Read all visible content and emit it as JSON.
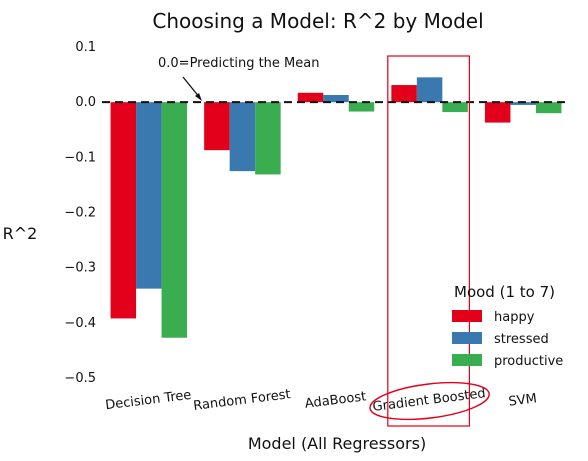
{
  "chart_data": {
    "type": "bar",
    "title": "Choosing a Model: R^2 by Model",
    "xlabel": "Model (All Regressors)",
    "ylabel": "R^2",
    "ylim": [
      -0.5,
      0.1
    ],
    "yticks": [
      "0.1",
      "0.0",
      "−0.1",
      "−0.2",
      "−0.3",
      "−0.4",
      "−0.5"
    ],
    "categories": [
      "Decision Tree",
      "Random Forest",
      "AdaBoost",
      "Gradient Boosted",
      "SVM"
    ],
    "series": [
      {
        "name": "happy",
        "color": "#e3001b",
        "values": [
          -0.392,
          -0.087,
          0.017,
          0.031,
          -0.037
        ]
      },
      {
        "name": "stressed",
        "color": "#3a78b0",
        "values": [
          -0.338,
          -0.125,
          0.013,
          0.045,
          -0.005
        ]
      },
      {
        "name": "productive",
        "color": "#3aad50",
        "values": [
          -0.427,
          -0.131,
          -0.017,
          -0.018,
          -0.02
        ]
      }
    ],
    "legend_title": "Mood (1 to 7)",
    "legend_position": "lower-right",
    "baseline": 0.0,
    "annotation": "0.0=Predicting the Mean",
    "highlighted_category": "Gradient Boosted",
    "grid": false
  }
}
